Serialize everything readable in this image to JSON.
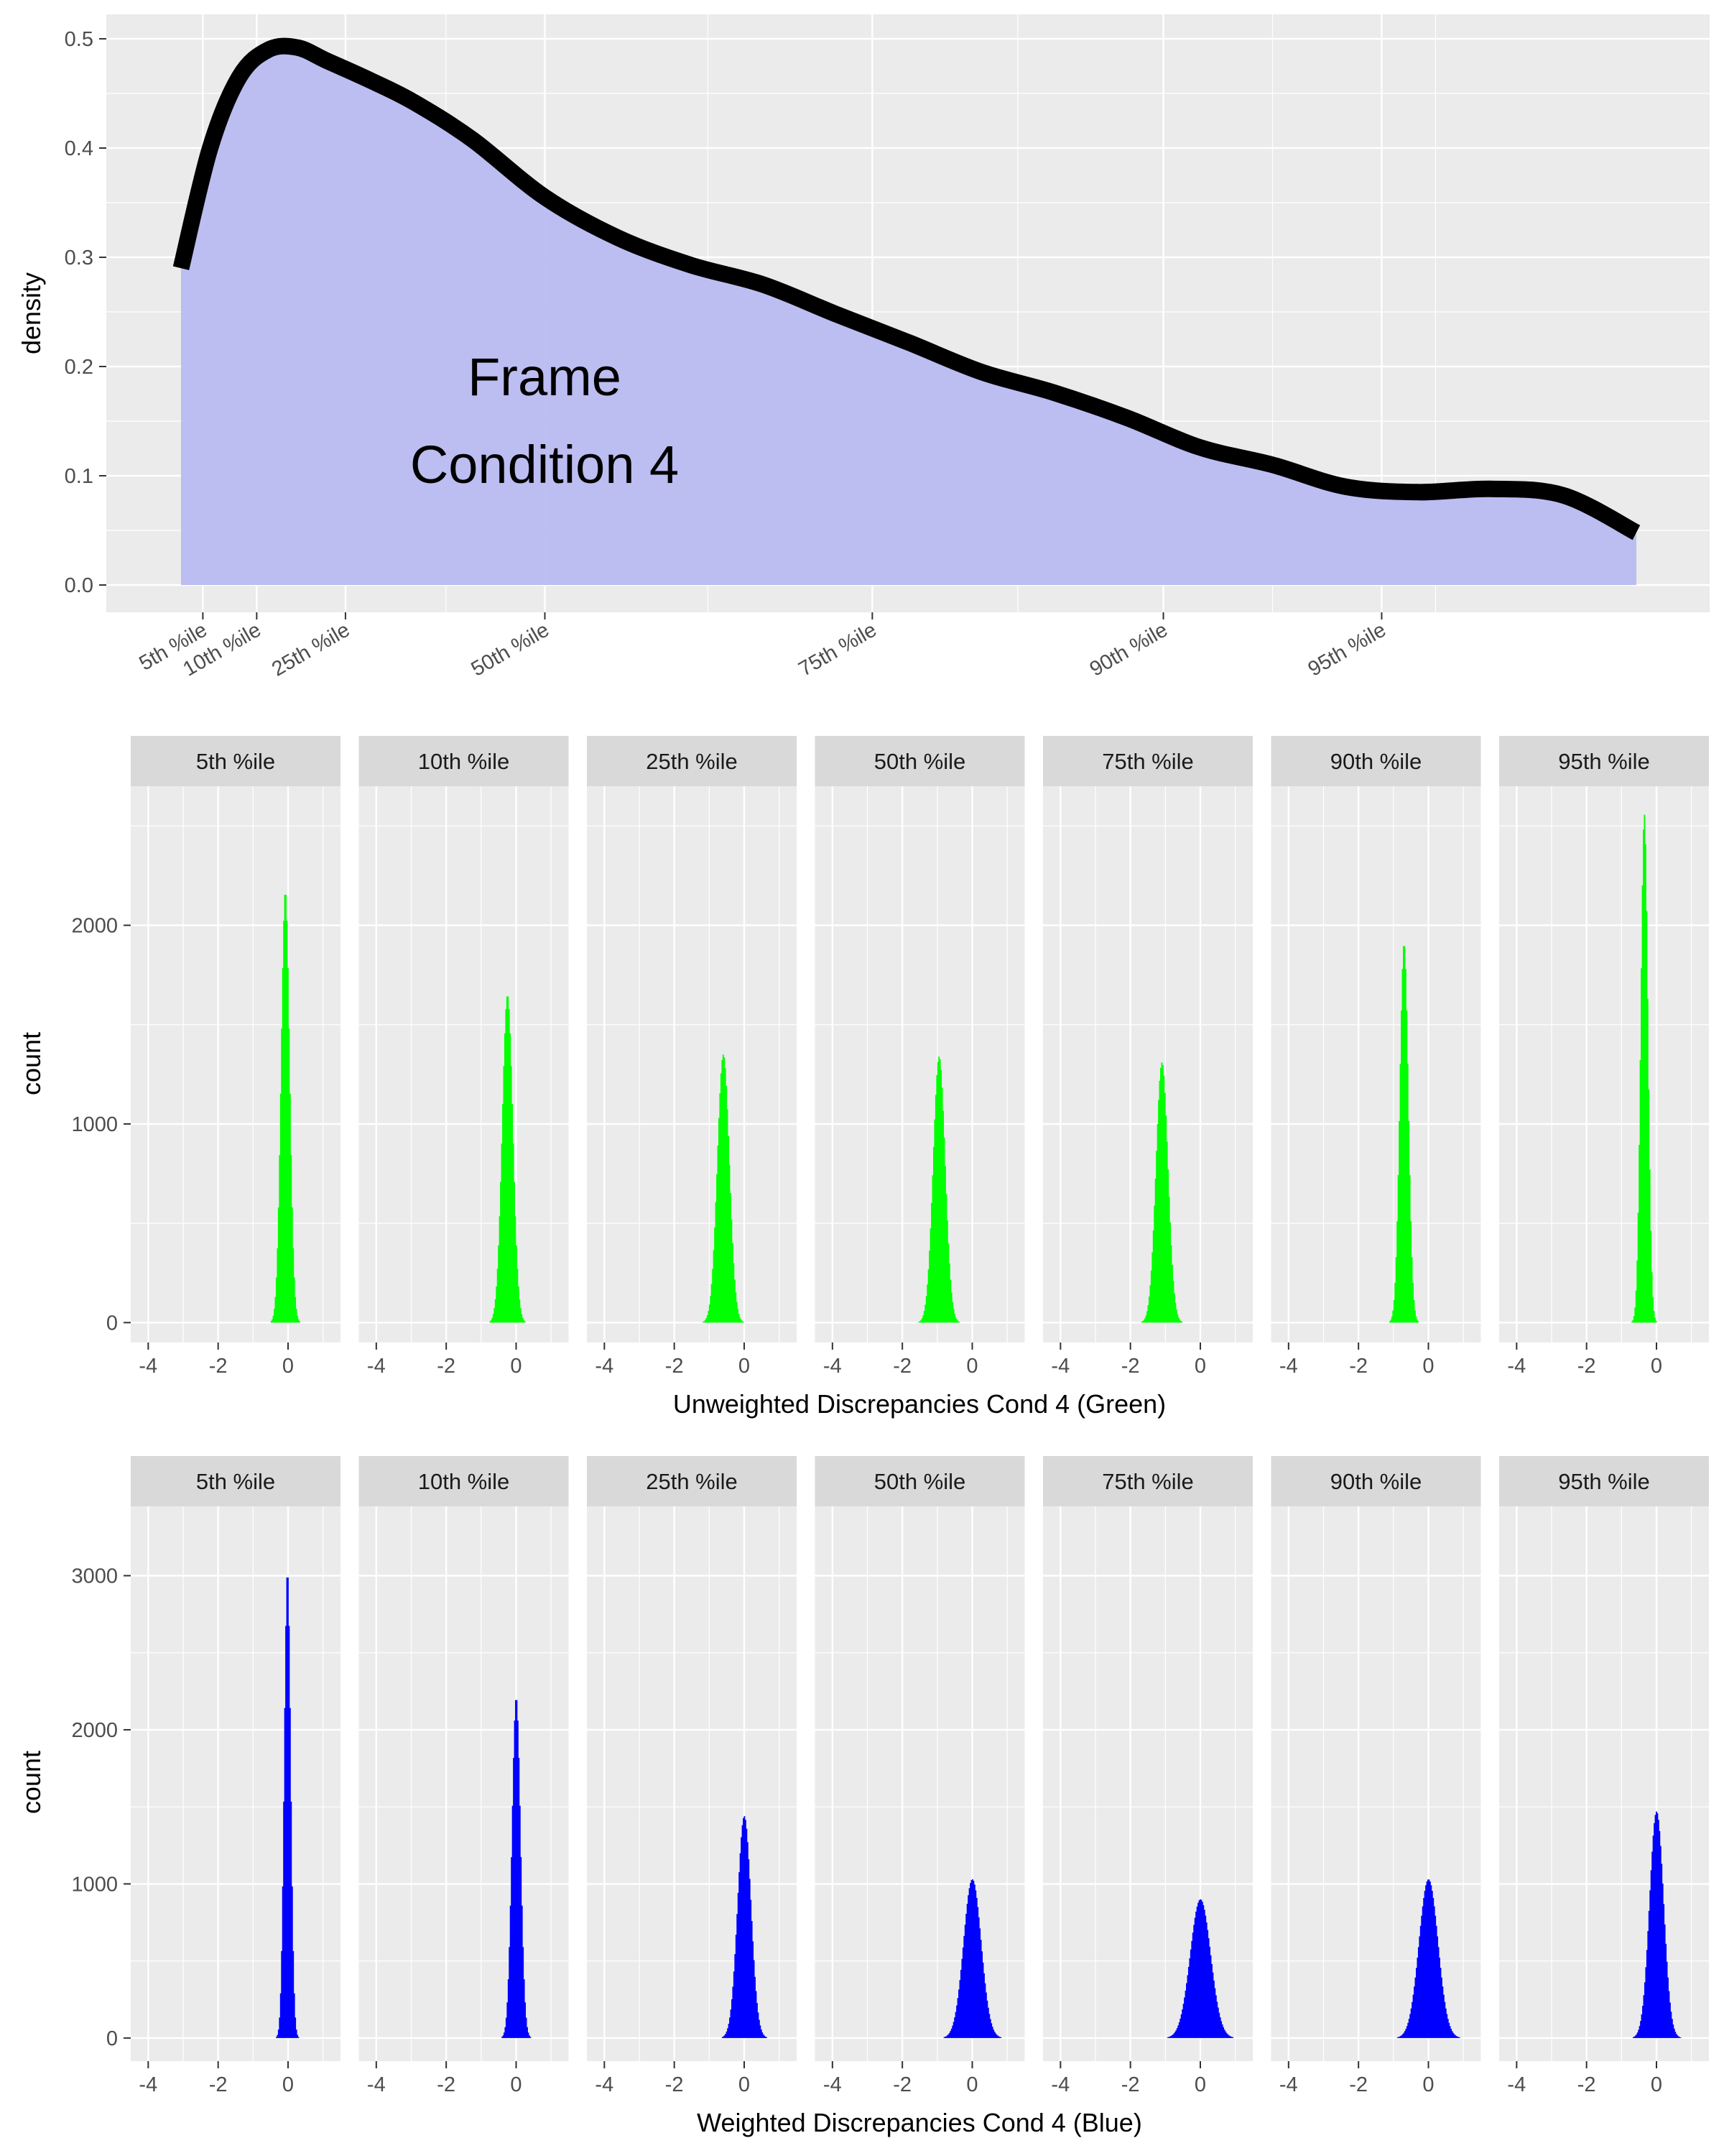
{
  "chart_data": [
    {
      "type": "area",
      "ylabel": "density",
      "annotation": [
        "Frame",
        "Condition 4"
      ],
      "fill_color": "#b9bbf1",
      "line_color": "#000000",
      "ylim": [
        0,
        0.5
      ],
      "yticks": [
        0.0,
        0.1,
        0.2,
        0.3,
        0.4,
        0.5
      ],
      "ytick_labels": [
        "0.0",
        "0.1",
        "0.2",
        "0.3",
        "0.4",
        "0.5"
      ],
      "grid": true,
      "x_ticks": [
        {
          "label": "5th %ile",
          "x": 0.015
        },
        {
          "label": "10th %ile",
          "x": 0.052
        },
        {
          "label": "25th %ile",
          "x": 0.113
        },
        {
          "label": "50th %ile",
          "x": 0.25
        },
        {
          "label": "75th %ile",
          "x": 0.475
        },
        {
          "label": "90th %ile",
          "x": 0.675
        },
        {
          "label": "95th %ile",
          "x": 0.825
        }
      ],
      "x_minor_grid": [
        0.052,
        0.182,
        0.362,
        0.575,
        0.75,
        0.862
      ],
      "curve": {
        "x": [
          0,
          0.02,
          0.04,
          0.06,
          0.08,
          0.1,
          0.13,
          0.16,
          0.2,
          0.25,
          0.3,
          0.35,
          0.4,
          0.45,
          0.5,
          0.55,
          0.6,
          0.65,
          0.7,
          0.75,
          0.8,
          0.85,
          0.9,
          0.95,
          1.0
        ],
        "y": [
          0.29,
          0.4,
          0.465,
          0.49,
          0.492,
          0.48,
          0.462,
          0.442,
          0.408,
          0.355,
          0.318,
          0.293,
          0.275,
          0.248,
          0.222,
          0.195,
          0.176,
          0.153,
          0.126,
          0.11,
          0.09,
          0.085,
          0.088,
          0.082,
          0.048
        ]
      }
    },
    {
      "type": "bar",
      "subtype": "histogram-facets",
      "xlabel": "Unweighted Discrepancies Cond 4 (Green)",
      "ylabel": "count",
      "fill_color": "#00ff00",
      "xlim": [
        -4.5,
        1.5
      ],
      "xticks": [
        -4,
        -2,
        0
      ],
      "ylim": [
        -100,
        2700
      ],
      "yticks": [
        0,
        1000,
        2000
      ],
      "panels": [
        {
          "label": "5th %ile",
          "center": -0.08,
          "sd": 0.12,
          "peak": 2170
        },
        {
          "label": "10th %ile",
          "center": -0.25,
          "sd": 0.15,
          "peak": 1650
        },
        {
          "label": "25th %ile",
          "center": -0.6,
          "sd": 0.17,
          "peak": 1350
        },
        {
          "label": "50th %ile",
          "center": -0.95,
          "sd": 0.17,
          "peak": 1340
        },
        {
          "label": "75th %ile",
          "center": -1.1,
          "sd": 0.17,
          "peak": 1310
        },
        {
          "label": "90th %ile",
          "center": -0.7,
          "sd": 0.12,
          "peak": 1910
        },
        {
          "label": "95th %ile",
          "center": -0.35,
          "sd": 0.1,
          "peak": 2560
        }
      ]
    },
    {
      "type": "bar",
      "subtype": "histogram-facets",
      "xlabel": "Weighted Discrepancies Cond 4 (Blue)",
      "ylabel": "count",
      "fill_color": "#0000ff",
      "xlim": [
        -4.5,
        1.5
      ],
      "xticks": [
        -4,
        -2,
        0
      ],
      "ylim": [
        -150,
        3450
      ],
      "yticks": [
        0,
        1000,
        2000,
        3000
      ],
      "panels": [
        {
          "label": "5th %ile",
          "center": -0.02,
          "sd": 0.09,
          "peak": 3030
        },
        {
          "label": "10th %ile",
          "center": 0.0,
          "sd": 0.12,
          "peak": 2210
        },
        {
          "label": "25th %ile",
          "center": 0.0,
          "sd": 0.19,
          "peak": 1440
        },
        {
          "label": "50th %ile",
          "center": 0.0,
          "sd": 0.25,
          "peak": 1030
        },
        {
          "label": "75th %ile",
          "center": 0.0,
          "sd": 0.29,
          "peak": 900
        },
        {
          "label": "90th %ile",
          "center": 0.0,
          "sd": 0.27,
          "peak": 1030
        },
        {
          "label": "95th %ile",
          "center": 0.0,
          "sd": 0.2,
          "peak": 1470
        }
      ]
    }
  ]
}
